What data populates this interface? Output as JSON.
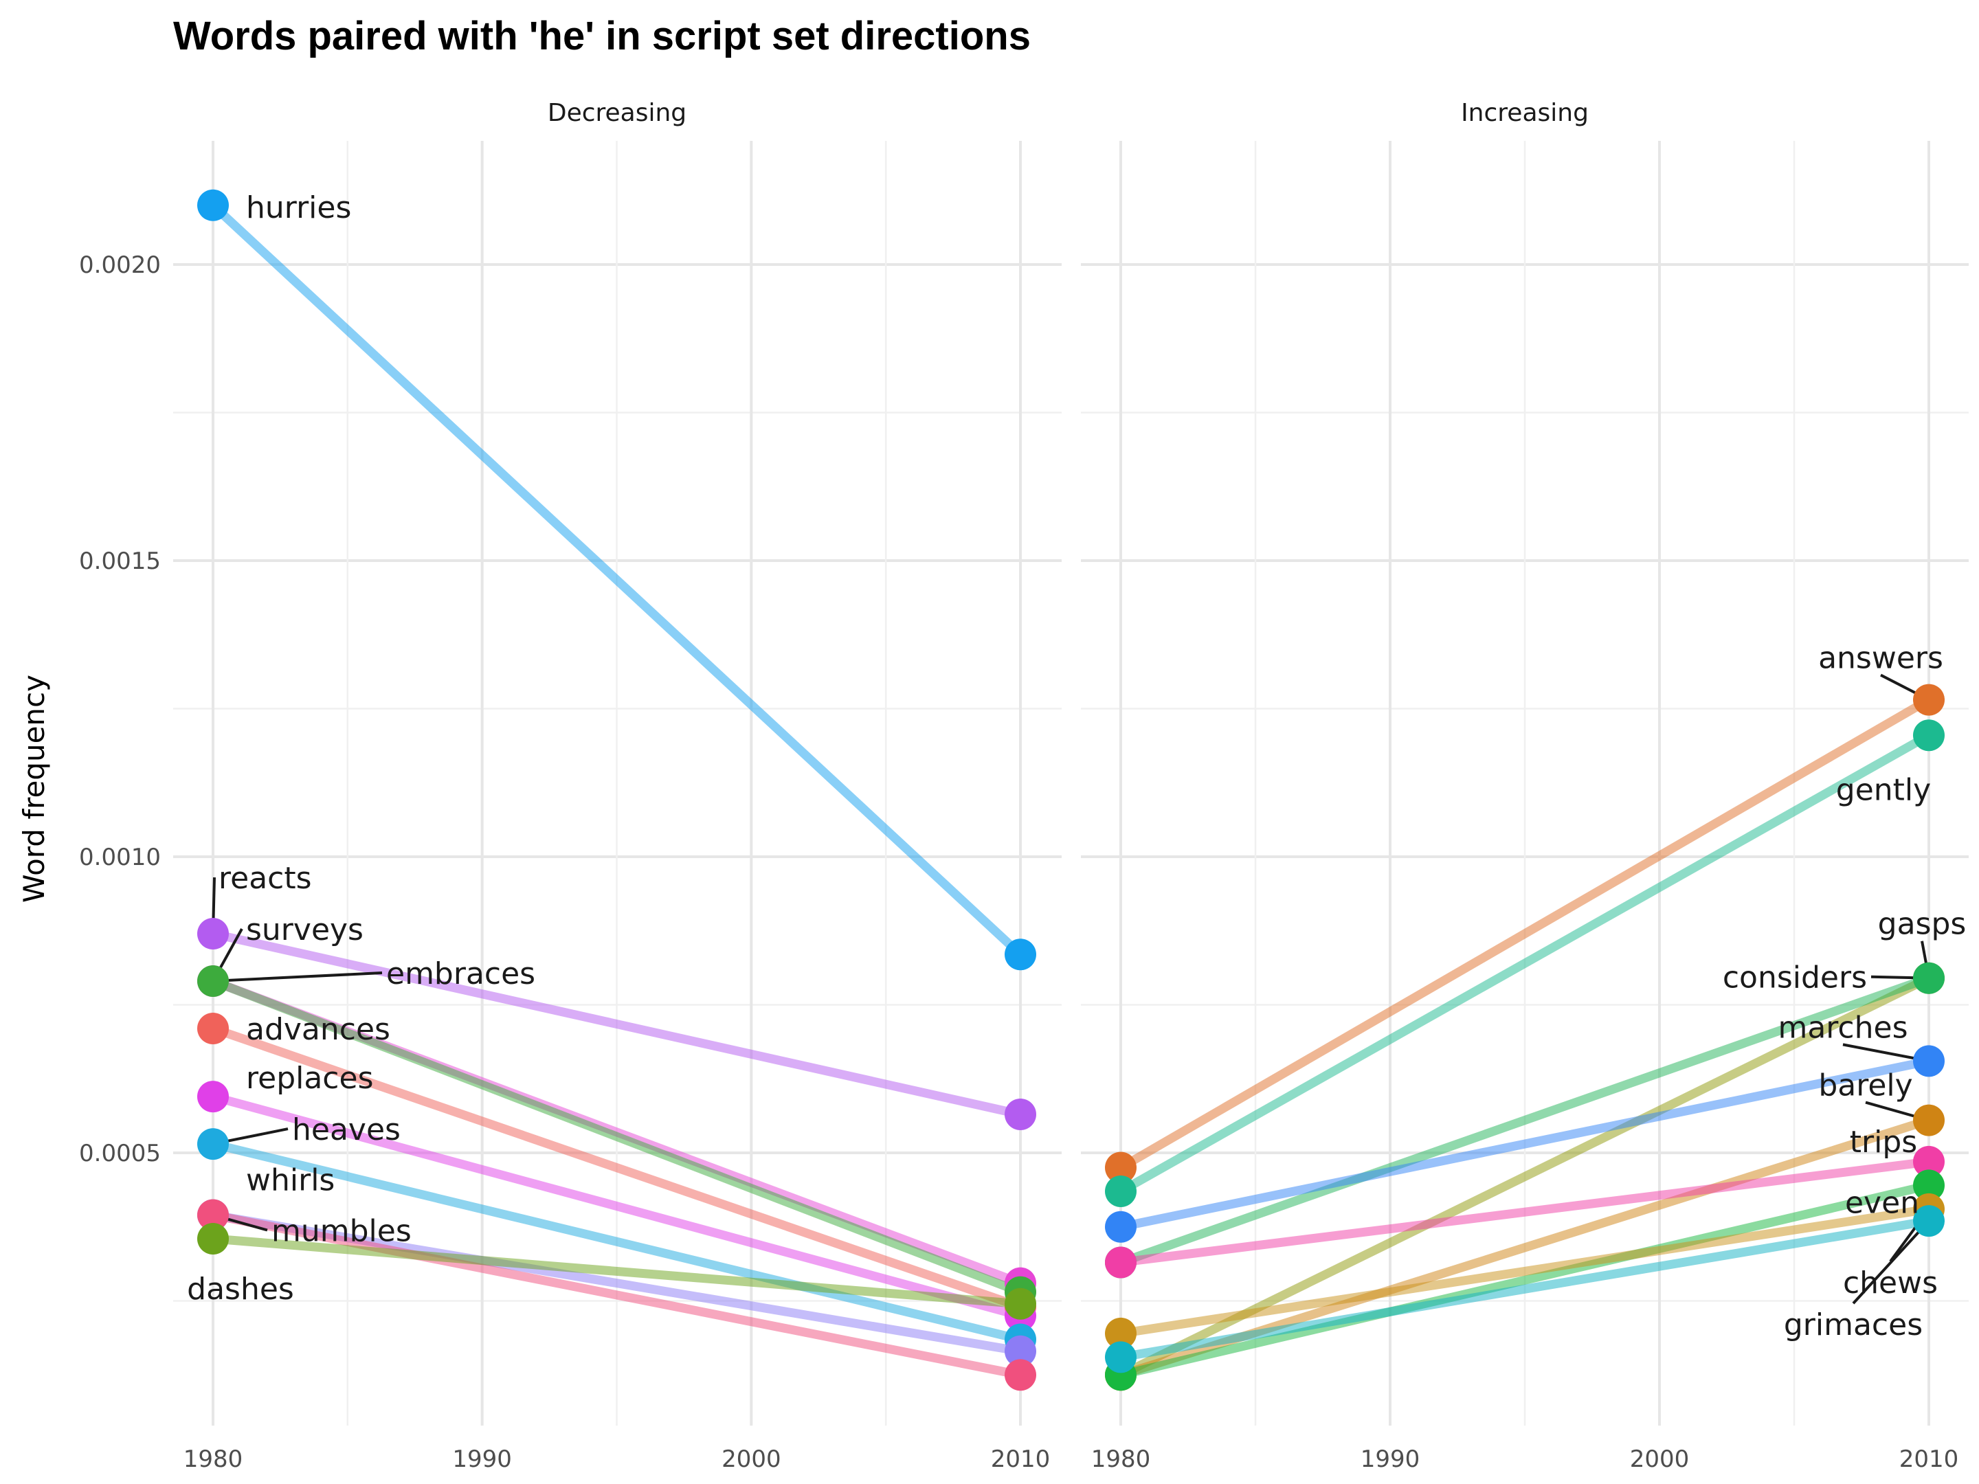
{
  "chart_data": {
    "type": "line",
    "title": "Words paired with 'he' in script set directions",
    "ylabel": "Word frequency",
    "xlabel": "",
    "x": [
      1980,
      2010
    ],
    "xticks": [
      1980,
      1990,
      2000,
      2010
    ],
    "ylim": [
      0.0001,
      0.0022
    ],
    "yticks": [
      0.0005,
      0.001,
      0.0015,
      0.002
    ],
    "ytick_labels": [
      "0.0005",
      "0.0010",
      "0.0015",
      "0.0020"
    ],
    "grid": true,
    "legend": "none",
    "panels": [
      {
        "name": "Decreasing",
        "series": [
          {
            "name": "hurries",
            "values": [
              0.0021,
              0.000835
            ],
            "color": "#14a0f0"
          },
          {
            "name": "reacts",
            "values": [
              0.00087,
              0.000565
            ],
            "color": "#b35cf0"
          },
          {
            "name": "surveys",
            "values": [
              0.00079,
              0.00028
            ],
            "color": "#e646d6"
          },
          {
            "name": "embraces",
            "values": [
              0.00079,
              0.000265
            ],
            "color": "#3dab3d"
          },
          {
            "name": "advances",
            "values": [
              0.00071,
              0.00024
            ],
            "color": "#f0625a"
          },
          {
            "name": "replaces",
            "values": [
              0.000595,
              0.000225
            ],
            "color": "#e040e8"
          },
          {
            "name": "heaves",
            "values": [
              0.000515,
              0.000185
            ],
            "color": "#1eaadf"
          },
          {
            "name": "whirls",
            "values": [
              0.000395,
              0.000165
            ],
            "color": "#8c7cf5"
          },
          {
            "name": "mumbles",
            "values": [
              0.000395,
              0.000125
            ],
            "color": "#f0507e"
          },
          {
            "name": "dashes",
            "values": [
              0.000355,
              0.000245
            ],
            "color": "#6ca31c"
          }
        ]
      },
      {
        "name": "Increasing",
        "series": [
          {
            "name": "answers",
            "values": [
              0.000475,
              0.001265
            ],
            "color": "#e0702a"
          },
          {
            "name": "gently",
            "values": [
              0.000435,
              0.001205
            ],
            "color": "#1cba90"
          },
          {
            "name": "gasps",
            "values": [
              0.000125,
              0.000795
            ],
            "color": "#8f9a0a"
          },
          {
            "name": "considers",
            "values": [
              0.000315,
              0.000795
            ],
            "color": "#22b45a"
          },
          {
            "name": "marches",
            "values": [
              0.000375,
              0.000655
            ],
            "color": "#3284f5"
          },
          {
            "name": "barely",
            "values": [
              0.000125,
              0.000555
            ],
            "color": "#cf8414"
          },
          {
            "name": "trips",
            "values": [
              0.000315,
              0.000485
            ],
            "color": "#f03ea6"
          },
          {
            "name": "even",
            "values": [
              0.000125,
              0.000445
            ],
            "color": "#18b840"
          },
          {
            "name": "chews",
            "values": [
              0.000195,
              0.000405
            ],
            "color": "#c9911a"
          },
          {
            "name": "grimaces",
            "values": [
              0.000155,
              0.000385
            ],
            "color": "#12b2c4"
          }
        ]
      }
    ]
  }
}
